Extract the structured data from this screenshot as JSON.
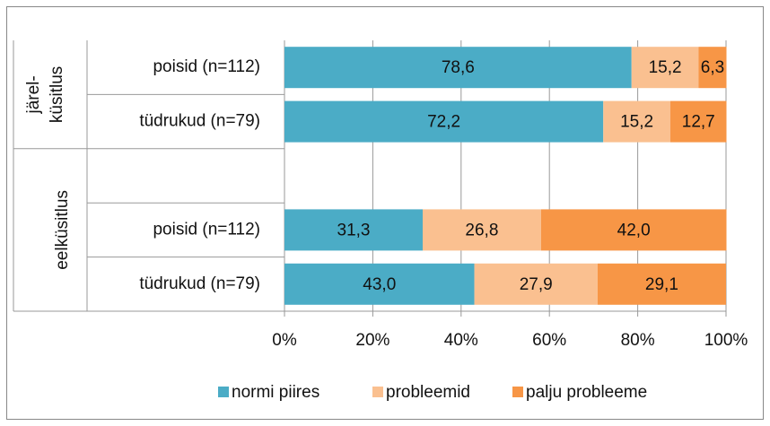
{
  "chart_data": {
    "type": "stacked_bar_horizontal",
    "categories": [
      "poisid (n=112)",
      "tüdrukud (n=79)",
      null,
      "poisid (n=112)",
      "tüdrukud (n=79)"
    ],
    "groups": [
      {
        "label": [
          "järel-",
          "küsitlus"
        ]
      },
      {
        "label": [
          "eelküsitlus"
        ]
      }
    ],
    "series": [
      {
        "name": "normi piires",
        "color": "#4bacc6",
        "values": [
          78.6,
          72.2,
          null,
          31.3,
          43.0
        ],
        "value_labels": [
          "78,6",
          "72,2",
          null,
          "31,3",
          "43,0"
        ]
      },
      {
        "name": "probleemid",
        "color": "#fac090",
        "values": [
          15.2,
          15.2,
          null,
          26.8,
          27.9
        ],
        "value_labels": [
          "15,2",
          "15,2",
          null,
          "26,8",
          "27,9"
        ]
      },
      {
        "name": "palju probleeme",
        "color": "#f79646",
        "values": [
          6.3,
          12.7,
          null,
          42.0,
          29.1
        ],
        "value_labels": [
          "6,3",
          "12,7",
          null,
          "42,0",
          "29,1"
        ]
      }
    ],
    "xlim": [
      0,
      100
    ],
    "xticks": [
      {
        "value": 0,
        "label": "0%"
      },
      {
        "value": 20,
        "label": "20%"
      },
      {
        "value": 40,
        "label": "40%"
      },
      {
        "value": 60,
        "label": "60%"
      },
      {
        "value": 80,
        "label": "80%"
      },
      {
        "value": 100,
        "label": "100%"
      }
    ],
    "grid": true,
    "legend": "bottom"
  }
}
